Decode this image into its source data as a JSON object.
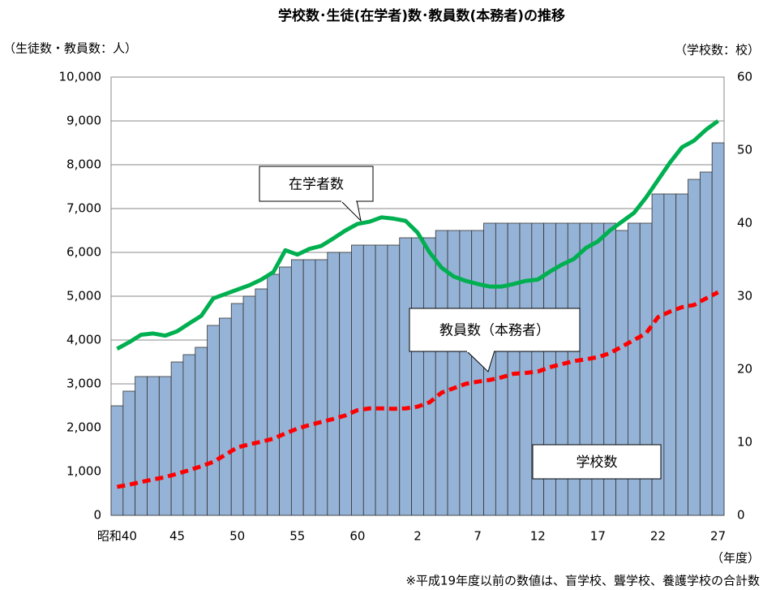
{
  "chart_data": {
    "type": "bar_line",
    "title": "学校数･生徒(在学者)数･教員数(本務者)の推移",
    "y_axis_label": "（生徒数・教員数：人）",
    "y2_axis_label": "（学校数：校）",
    "x_axis_label": "（年度）",
    "note": "※平成19年度以前の数値は、盲学校、聾学校、養護学校の合計数",
    "annotations": [
      "在学者数",
      "教員数（本務者）",
      "学校数"
    ],
    "categories": [
      "昭和40",
      null,
      null,
      null,
      null,
      "45",
      null,
      null,
      null,
      null,
      "50",
      null,
      null,
      null,
      null,
      "55",
      null,
      null,
      null,
      null,
      "60",
      null,
      null,
      null,
      null,
      "2",
      null,
      null,
      null,
      null,
      "7",
      null,
      null,
      null,
      null,
      "12",
      null,
      null,
      null,
      null,
      "17",
      null,
      null,
      null,
      null,
      "22",
      null,
      null,
      null,
      null,
      "27"
    ],
    "series": [
      {
        "name": "学校数",
        "kind": "bar",
        "axis": "y2",
        "color": "#95b3d7",
        "values": [
          15,
          17,
          19,
          19,
          19,
          21,
          22,
          23,
          26,
          27,
          29,
          30,
          31,
          33,
          34,
          35,
          35,
          35,
          36,
          36,
          37,
          37,
          37,
          37,
          38,
          38,
          38,
          39,
          39,
          39,
          39,
          40,
          40,
          40,
          40,
          40,
          40,
          40,
          40,
          40,
          40,
          40,
          39,
          40,
          40,
          44,
          44,
          44,
          46,
          47,
          51
        ]
      },
      {
        "name": "在学者数",
        "kind": "line",
        "axis": "y",
        "color": "#00b050",
        "dash": false,
        "values": [
          3800,
          3950,
          4120,
          4150,
          4100,
          4200,
          4380,
          4550,
          4950,
          5050,
          5150,
          5250,
          5380,
          5550,
          6050,
          5950,
          6080,
          6150,
          6320,
          6500,
          6650,
          6700,
          6800,
          6770,
          6720,
          6450,
          6000,
          5650,
          5450,
          5350,
          5280,
          5220,
          5220,
          5280,
          5350,
          5380,
          5560,
          5720,
          5850,
          6100,
          6250,
          6500,
          6700,
          6900,
          7250,
          7650,
          8050,
          8400,
          8550,
          8800,
          9000
        ]
      },
      {
        "name": "教員数（本務者）",
        "kind": "line",
        "axis": "y",
        "color": "#ff0000",
        "dash": true,
        "values": [
          650,
          700,
          760,
          820,
          870,
          950,
          1030,
          1120,
          1220,
          1380,
          1550,
          1620,
          1680,
          1750,
          1870,
          1980,
          2060,
          2130,
          2200,
          2280,
          2400,
          2440,
          2440,
          2430,
          2440,
          2480,
          2580,
          2800,
          2900,
          3000,
          3050,
          3090,
          3150,
          3230,
          3250,
          3280,
          3380,
          3450,
          3520,
          3560,
          3610,
          3700,
          3850,
          4000,
          4150,
          4520,
          4650,
          4750,
          4800,
          4950,
          5090
        ]
      }
    ],
    "ylim": [
      0,
      10000
    ],
    "yticks": [
      0,
      {
        "value": 1000,
        "label": "1,000"
      },
      {
        "value": 2000,
        "label": "2,000"
      },
      {
        "value": 3000,
        "label": "3,000"
      },
      {
        "value": 4000,
        "label": "4,000"
      },
      {
        "value": 5000,
        "label": "5,000"
      },
      {
        "value": 6000,
        "label": "6,000"
      },
      {
        "value": 7000,
        "label": "7,000"
      },
      {
        "value": 8000,
        "label": "8,000"
      },
      {
        "value": 9000,
        "label": "9,000"
      },
      {
        "value": 10000,
        "label": "10,000"
      }
    ],
    "y2lim": [
      0,
      60
    ],
    "y2ticks": [
      0,
      10,
      20,
      30,
      40,
      50,
      60
    ],
    "grid": true
  }
}
